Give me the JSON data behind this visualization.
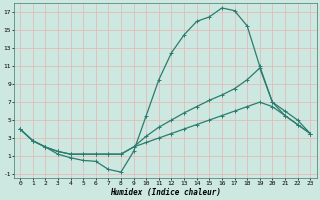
{
  "title": "",
  "xlabel": "Humidex (Indice chaleur)",
  "ylabel": "",
  "line_color": "#2a7d6e",
  "bg_color": "#cce8e0",
  "grid_color_major": "#e8b4b4",
  "grid_color_minor": "#dde8e4",
  "xlim": [
    -0.5,
    23.5
  ],
  "ylim": [
    -1.5,
    18
  ],
  "yticks": [
    -1,
    1,
    3,
    5,
    7,
    9,
    11,
    13,
    15,
    17
  ],
  "xticks": [
    0,
    1,
    2,
    3,
    4,
    5,
    6,
    7,
    8,
    9,
    10,
    11,
    12,
    13,
    14,
    15,
    16,
    17,
    18,
    19,
    20,
    21,
    22,
    23
  ],
  "line1_x": [
    0,
    1,
    2,
    3,
    4,
    5,
    6,
    7,
    8,
    9,
    10,
    11,
    12,
    13,
    14,
    15,
    16,
    17,
    18,
    19,
    20,
    21,
    22,
    23
  ],
  "line1_y": [
    4,
    2.7,
    2.0,
    1.2,
    0.8,
    0.5,
    0.4,
    -0.5,
    -0.8,
    1.5,
    5.5,
    9.5,
    12.5,
    14.5,
    16,
    16.5,
    17.5,
    17.2,
    15.5,
    11,
    7,
    5.5,
    4.5,
    3.5
  ],
  "line2_x": [
    0,
    1,
    2,
    3,
    4,
    5,
    6,
    7,
    8,
    9,
    10,
    11,
    12,
    13,
    14,
    15,
    16,
    17,
    18,
    19,
    20,
    21,
    22,
    23
  ],
  "line2_y": [
    4,
    2.7,
    2.0,
    1.5,
    1.2,
    1.2,
    1.2,
    1.2,
    1.2,
    2.0,
    3.2,
    4.2,
    5.0,
    5.8,
    6.5,
    7.2,
    7.8,
    8.5,
    9.5,
    10.8,
    7,
    6,
    5,
    3.5
  ],
  "line3_x": [
    0,
    1,
    2,
    3,
    4,
    5,
    6,
    7,
    8,
    9,
    10,
    11,
    12,
    13,
    14,
    15,
    16,
    17,
    18,
    19,
    20,
    21,
    22,
    23
  ],
  "line3_y": [
    4,
    2.7,
    2.0,
    1.5,
    1.2,
    1.2,
    1.2,
    1.2,
    1.2,
    2.0,
    2.5,
    3.0,
    3.5,
    4.0,
    4.5,
    5.0,
    5.5,
    6.0,
    6.5,
    7.0,
    6.5,
    5.5,
    4.5,
    3.5
  ],
  "marker": "+",
  "markersize": 3,
  "linewidth": 0.9
}
